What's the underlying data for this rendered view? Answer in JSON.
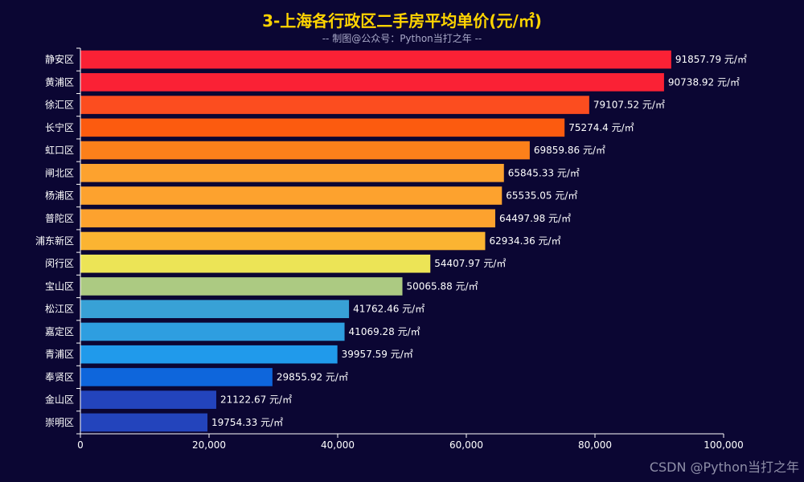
{
  "chart_data": {
    "type": "bar",
    "orientation": "horizontal",
    "title": "3-上海各行政区二手房平均单价(元/㎡)",
    "subtitle": "-- 制图@公众号：Python当打之年 --",
    "value_suffix": " 元/㎡",
    "xlim": [
      0,
      100000
    ],
    "x_ticks": [
      0,
      20000,
      40000,
      60000,
      80000,
      100000
    ],
    "x_tick_labels": [
      "0",
      "20,000",
      "40,000",
      "60,000",
      "80,000",
      "100,000"
    ],
    "categories": [
      "静安区",
      "黄浦区",
      "徐汇区",
      "长宁区",
      "虹口区",
      "闸北区",
      "杨浦区",
      "普陀区",
      "浦东新区",
      "闵行区",
      "宝山区",
      "松江区",
      "嘉定区",
      "青浦区",
      "奉贤区",
      "金山区",
      "崇明区"
    ],
    "values": [
      91857.79,
      90738.92,
      79107.52,
      75274.4,
      69859.86,
      65845.33,
      65535.05,
      64497.98,
      62934.36,
      54407.97,
      50065.88,
      41762.46,
      41069.28,
      39957.59,
      29855.92,
      21122.67,
      19754.33
    ],
    "value_labels": [
      "91857.79 元/㎡",
      "90738.92 元/㎡",
      "79107.52 元/㎡",
      "75274.4 元/㎡",
      "69859.86 元/㎡",
      "65845.33 元/㎡",
      "65535.05 元/㎡",
      "64497.98 元/㎡",
      "62934.36 元/㎡",
      "54407.97 元/㎡",
      "50065.88 元/㎡",
      "41762.46 元/㎡",
      "41069.28 元/㎡",
      "39957.59 元/㎡",
      "29855.92 元/㎡",
      "21122.67 元/㎡",
      "19754.33 元/㎡"
    ],
    "colors": [
      "#fa2135",
      "#fa2135",
      "#fc4d1f",
      "#fc5b0f",
      "#fc801a",
      "#fda22e",
      "#fda22e",
      "#fda22e",
      "#fbb432",
      "#ece456",
      "#acca82",
      "#38a1d6",
      "#2e9ee0",
      "#209aeb",
      "#0e66dc",
      "#2344bc",
      "#2344bc"
    ]
  },
  "colors": {
    "background": "#0b0633",
    "title": "#ffd400",
    "axis": "#ffffff",
    "label": "#ffffff"
  },
  "watermark": "CSDN @Python当打之年"
}
